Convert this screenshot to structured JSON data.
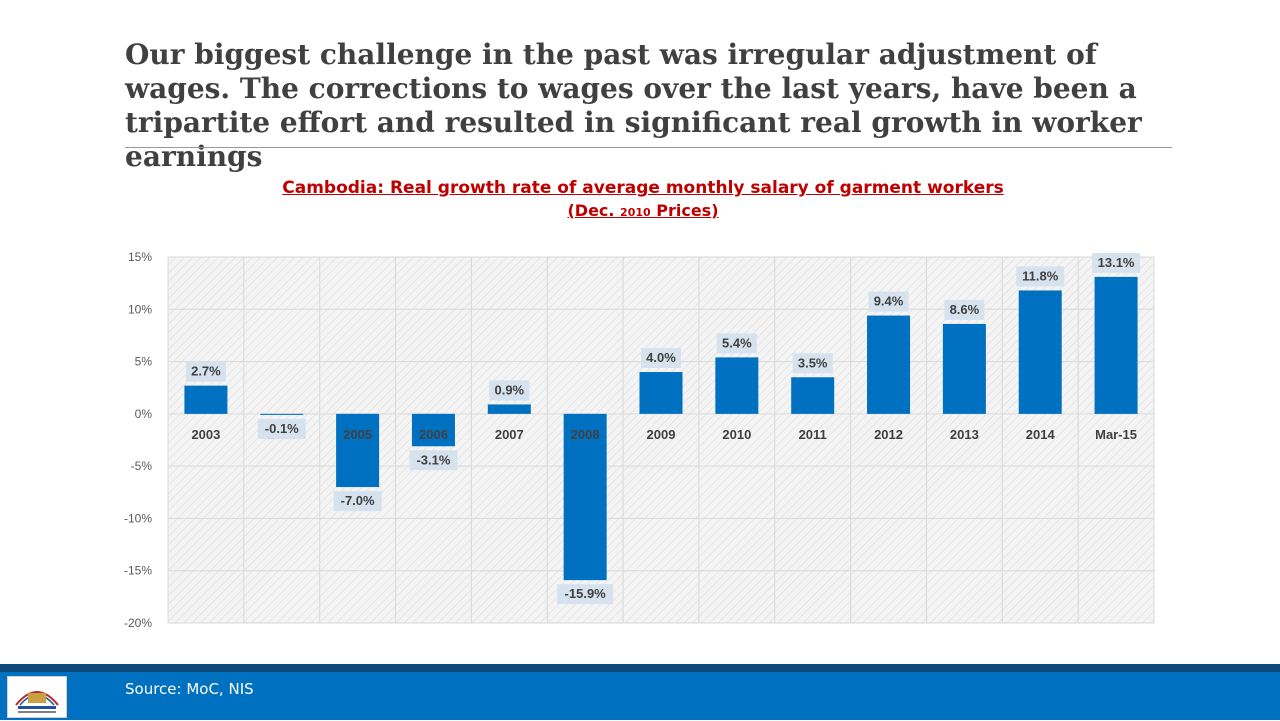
{
  "slide": {
    "headline": "Our biggest challenge in the past was irregular adjustment of wages. The corrections to wages over the last years, have been a tripartite effort and resulted in significant real growth in worker earnings",
    "source": "Source: MoC, NIS"
  },
  "chart_data": {
    "type": "bar",
    "title": "Cambodia: Real growth rate of average monthly salary of garment workers",
    "subtitle": {
      "open": "(",
      "part1": "Dec. ",
      "part2": "2010",
      "part3": " Prices",
      "close": ")"
    },
    "categories": [
      "2003",
      "2004",
      "2005",
      "2006",
      "2007",
      "2008",
      "2009",
      "2010",
      "2011",
      "2012",
      "2013",
      "2014",
      "Mar-15"
    ],
    "values": [
      2.7,
      -0.1,
      -7.0,
      -3.1,
      0.9,
      -15.9,
      4.0,
      5.4,
      3.5,
      9.4,
      8.6,
      11.8,
      13.1
    ],
    "data_labels": [
      "2.7%",
      "-0.1%",
      "-7.0%",
      "-3.1%",
      "0.9%",
      "-15.9%",
      "4.0%",
      "5.4%",
      "3.5%",
      "9.4%",
      "8.6%",
      "11.8%",
      "13.1%"
    ],
    "y_ticks": [
      "15%",
      "10%",
      "5%",
      "0%",
      "-5%",
      "-10%",
      "-15%",
      "-20%"
    ],
    "y_tick_values": [
      15,
      10,
      5,
      0,
      -5,
      -10,
      -15,
      -20
    ],
    "ylim": [
      -20,
      15
    ],
    "xlabel": "",
    "ylabel": "",
    "grid": true,
    "colors": {
      "bar": "#0070c0",
      "label_bg": "#d6e3ef",
      "title": "#c00000",
      "grid": "#d9d9d9"
    }
  }
}
